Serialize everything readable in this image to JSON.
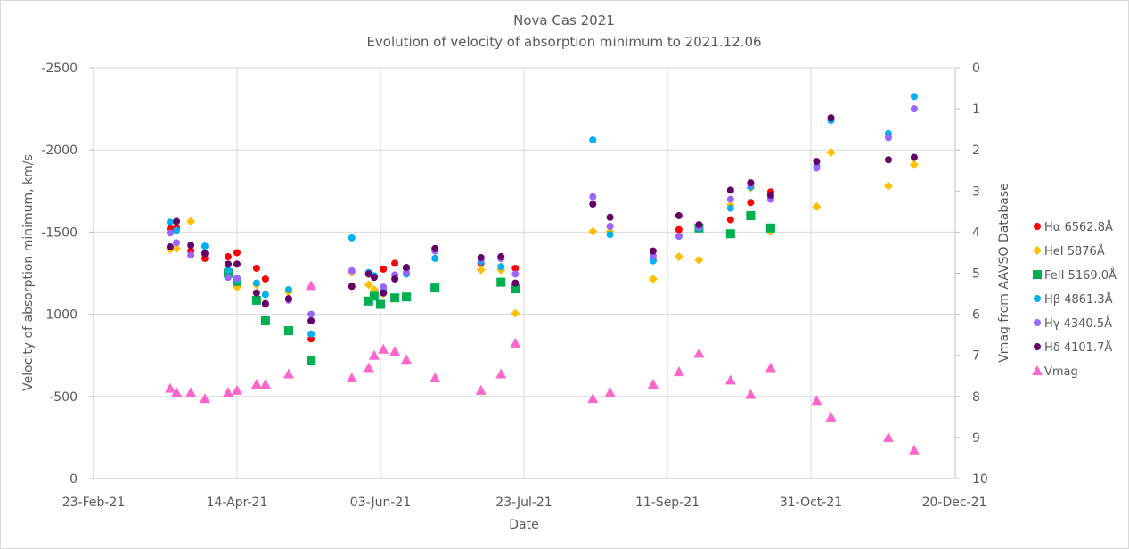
{
  "chart_data": {
    "type": "scatter",
    "title": "Nova Cas 2021",
    "subtitle": "Evolution of velocity of absorption minimum to 2021.12.06",
    "xlabel": "Date",
    "ylabel": "Velocity of absorption minimum, km/s",
    "y2label": "Vmag from AAVSO Database",
    "x_units": "days since 23-Feb-21",
    "xlim": [
      0,
      300
    ],
    "x_ticks": [
      0,
      50,
      100,
      150,
      200,
      250,
      300
    ],
    "x_tick_labels": [
      "23-Feb-21",
      "14-Apr-21",
      "03-Jun-21",
      "23-Jul-21",
      "11-Sep-21",
      "31-Oct-21",
      "20-Dec-21"
    ],
    "ylim": [
      0,
      -2500
    ],
    "y_ticks": [
      -2500,
      -2000,
      -1500,
      -1000,
      -500,
      0
    ],
    "y_tick_labels": [
      "-2500",
      "-2000",
      "-1500",
      "-1000",
      "-500",
      "0"
    ],
    "y2lim": [
      10,
      0
    ],
    "y2_ticks": [
      0,
      1,
      2,
      3,
      4,
      5,
      6,
      7,
      8,
      9,
      10
    ],
    "y2_tick_labels": [
      "0",
      "1",
      "2",
      "3",
      "4",
      "5",
      "6",
      "7",
      "8",
      "9",
      "10"
    ],
    "grid": true,
    "legend_position": "right",
    "series": [
      {
        "name": "Hα 6562.8Å",
        "marker": "circle",
        "color": "#ff0000",
        "axis": "left",
        "points": [
          [
            26.7,
            -1520
          ],
          [
            28.9,
            -1525
          ],
          [
            33.9,
            -1385
          ],
          [
            38.8,
            -1340
          ],
          [
            46.9,
            -1350
          ],
          [
            50,
            -1375
          ],
          [
            56.8,
            -1280
          ],
          [
            59.9,
            -1215
          ],
          [
            68,
            -1090
          ],
          [
            75.8,
            -850
          ],
          [
            95.9,
            -1250
          ],
          [
            97.8,
            -1230
          ],
          [
            101,
            -1275
          ],
          [
            105,
            -1310
          ],
          [
            109,
            -1280
          ],
          [
            119,
            -1390
          ],
          [
            135,
            -1310
          ],
          [
            142,
            -1340
          ],
          [
            147,
            -1280
          ],
          [
            195,
            -1330
          ],
          [
            204,
            -1515
          ],
          [
            211,
            -1535
          ],
          [
            222,
            -1575
          ],
          [
            229,
            -1680
          ],
          [
            236,
            -1745
          ]
        ]
      },
      {
        "name": "HeI 5876Å",
        "marker": "diamond",
        "color": "#ffc000",
        "axis": "left",
        "points": [
          [
            26.7,
            -1395
          ],
          [
            28.9,
            -1400
          ],
          [
            33.9,
            -1565
          ],
          [
            46.9,
            -1245
          ],
          [
            50,
            -1165
          ],
          [
            56.8,
            -1180
          ],
          [
            68,
            -1135
          ],
          [
            90,
            -1255
          ],
          [
            95.9,
            -1180
          ],
          [
            97.8,
            -1150
          ],
          [
            101,
            -1125
          ],
          [
            142,
            -1270
          ],
          [
            135,
            -1270
          ],
          [
            147,
            -1005
          ],
          [
            174,
            -1505
          ],
          [
            180,
            -1505
          ],
          [
            195,
            -1215
          ],
          [
            204,
            -1350
          ],
          [
            211,
            -1330
          ],
          [
            222,
            -1665
          ],
          [
            229,
            -1770
          ],
          [
            236,
            -1505
          ],
          [
            252,
            -1655
          ],
          [
            257,
            -1985
          ],
          [
            277,
            -1780
          ],
          [
            286,
            -1910
          ]
        ]
      },
      {
        "name": "FeII 5169.0Å",
        "marker": "square",
        "color": "#00b050",
        "axis": "left",
        "points": [
          [
            46.9,
            -1250
          ],
          [
            50,
            -1200
          ],
          [
            56.8,
            -1085
          ],
          [
            59.9,
            -960
          ],
          [
            68,
            -900
          ],
          [
            75.8,
            -720
          ],
          [
            95.9,
            -1080
          ],
          [
            97.8,
            -1110
          ],
          [
            100,
            -1060
          ],
          [
            105,
            -1100
          ],
          [
            109,
            -1105
          ],
          [
            119,
            -1160
          ],
          [
            142,
            -1195
          ],
          [
            147,
            -1155
          ],
          [
            211,
            -1525
          ],
          [
            222,
            -1490
          ],
          [
            229,
            -1600
          ],
          [
            236,
            -1525
          ]
        ]
      },
      {
        "name": "Hβ 4861.3Å",
        "marker": "circle",
        "color": "#00b0f0",
        "axis": "left",
        "points": [
          [
            26.7,
            -1560
          ],
          [
            28.9,
            -1510
          ],
          [
            38.8,
            -1415
          ],
          [
            46.9,
            -1270
          ],
          [
            50,
            -1210
          ],
          [
            56.8,
            -1190
          ],
          [
            59.9,
            -1120
          ],
          [
            68,
            -1150
          ],
          [
            75.8,
            -880
          ],
          [
            90,
            -1465
          ],
          [
            95.9,
            -1255
          ],
          [
            97.8,
            -1235
          ],
          [
            101,
            -1145
          ],
          [
            109,
            -1245
          ],
          [
            119,
            -1340
          ],
          [
            135,
            -1320
          ],
          [
            142,
            -1290
          ],
          [
            174,
            -2060
          ],
          [
            180,
            -1485
          ],
          [
            195,
            -1325
          ],
          [
            204,
            -1475
          ],
          [
            211,
            -1525
          ],
          [
            222,
            -1645
          ],
          [
            229,
            -1775
          ],
          [
            236,
            -1715
          ],
          [
            252,
            -1905
          ],
          [
            257,
            -2180
          ],
          [
            277,
            -2100
          ],
          [
            286,
            -2325
          ]
        ]
      },
      {
        "name": "Hγ 4340.5Å",
        "marker": "circle",
        "color": "#9966ff",
        "axis": "left",
        "points": [
          [
            26.7,
            -1495
          ],
          [
            28.9,
            -1435
          ],
          [
            33.9,
            -1360
          ],
          [
            46.9,
            -1225
          ],
          [
            50,
            -1220
          ],
          [
            59.9,
            -1060
          ],
          [
            68,
            -1085
          ],
          [
            75.8,
            -1000
          ],
          [
            90,
            -1265
          ],
          [
            95.9,
            -1245
          ],
          [
            101,
            -1165
          ],
          [
            105,
            -1240
          ],
          [
            109,
            -1255
          ],
          [
            119,
            -1385
          ],
          [
            135,
            -1335
          ],
          [
            142,
            -1340
          ],
          [
            147,
            -1245
          ],
          [
            174,
            -1715
          ],
          [
            180,
            -1535
          ],
          [
            195,
            -1355
          ],
          [
            204,
            -1475
          ],
          [
            211,
            -1530
          ],
          [
            222,
            -1700
          ],
          [
            229,
            -1790
          ],
          [
            236,
            -1700
          ],
          [
            252,
            -1890
          ],
          [
            277,
            -2075
          ],
          [
            286,
            -2250
          ]
        ]
      },
      {
        "name": "Hδ 4101.7Å",
        "marker": "circle",
        "color": "#660066",
        "axis": "left",
        "points": [
          [
            26.7,
            -1410
          ],
          [
            28.9,
            -1565
          ],
          [
            33.9,
            -1420
          ],
          [
            38.8,
            -1370
          ],
          [
            46.9,
            -1305
          ],
          [
            50,
            -1305
          ],
          [
            56.8,
            -1130
          ],
          [
            59.9,
            -1065
          ],
          [
            68,
            -1095
          ],
          [
            75.8,
            -960
          ],
          [
            90,
            -1170
          ],
          [
            95.9,
            -1245
          ],
          [
            97.8,
            -1225
          ],
          [
            101,
            -1130
          ],
          [
            105,
            -1215
          ],
          [
            109,
            -1285
          ],
          [
            119,
            -1400
          ],
          [
            135,
            -1345
          ],
          [
            142,
            -1350
          ],
          [
            147,
            -1190
          ],
          [
            174,
            -1670
          ],
          [
            180,
            -1590
          ],
          [
            195,
            -1385
          ],
          [
            204,
            -1600
          ],
          [
            211,
            -1545
          ],
          [
            222,
            -1755
          ],
          [
            229,
            -1800
          ],
          [
            236,
            -1725
          ],
          [
            252,
            -1930
          ],
          [
            257,
            -2195
          ],
          [
            277,
            -1940
          ],
          [
            286,
            -1955
          ]
        ]
      },
      {
        "name": "Vmag",
        "marker": "triangle",
        "color": "#ff66cc",
        "axis": "right",
        "points": [
          [
            26.7,
            7.8
          ],
          [
            28.9,
            7.9
          ],
          [
            33.9,
            7.9
          ],
          [
            38.8,
            8.05
          ],
          [
            46.9,
            7.9
          ],
          [
            50,
            7.85
          ],
          [
            56.8,
            7.7
          ],
          [
            59.9,
            7.7
          ],
          [
            68,
            7.45
          ],
          [
            75.8,
            5.3
          ],
          [
            90,
            7.55
          ],
          [
            95.9,
            7.3
          ],
          [
            97.8,
            7.0
          ],
          [
            101,
            6.85
          ],
          [
            105,
            6.9
          ],
          [
            109,
            7.1
          ],
          [
            119,
            7.55
          ],
          [
            135,
            7.85
          ],
          [
            142,
            7.45
          ],
          [
            147,
            6.7
          ],
          [
            174,
            8.05
          ],
          [
            180,
            7.9
          ],
          [
            195,
            7.7
          ],
          [
            204,
            7.4
          ],
          [
            211,
            6.95
          ],
          [
            222,
            7.6
          ],
          [
            229,
            7.95
          ],
          [
            236,
            7.3
          ],
          [
            252,
            8.1
          ],
          [
            257,
            8.5
          ],
          [
            277,
            9.0
          ],
          [
            286,
            9.3
          ]
        ]
      }
    ]
  }
}
